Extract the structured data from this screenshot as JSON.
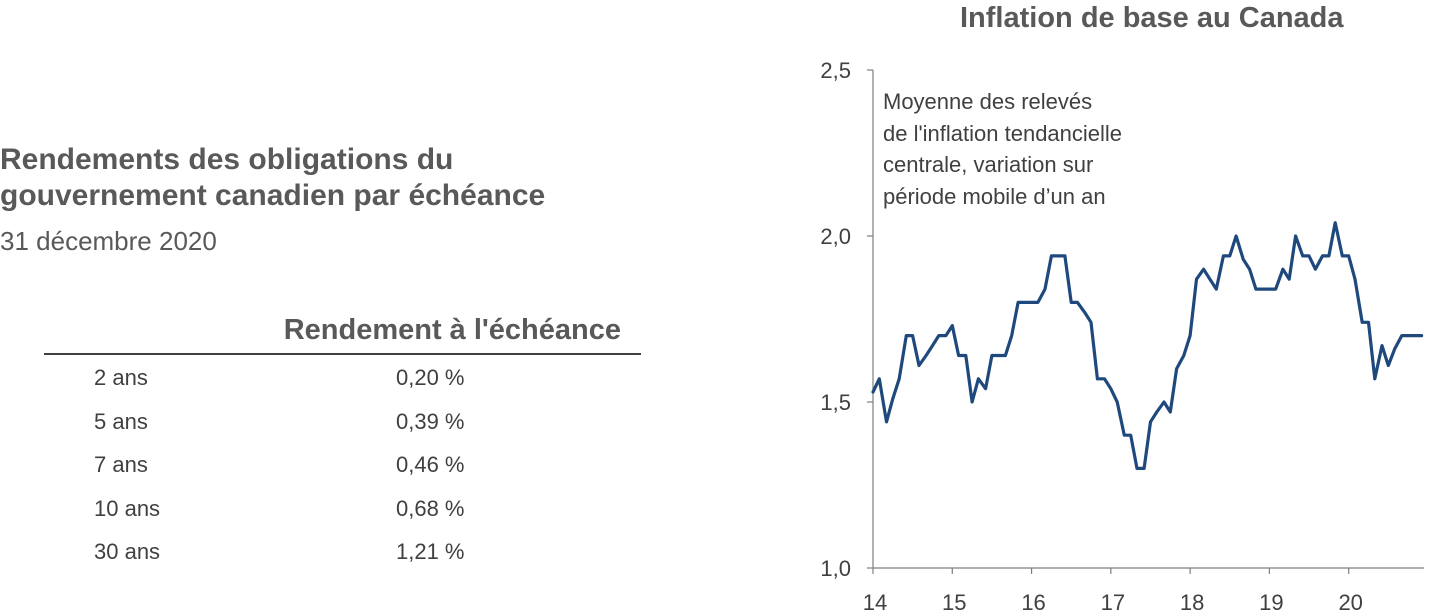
{
  "left_panel": {
    "title_line1": "Rendements des obligations du",
    "title_line2": "gouvernement canadien par échéance",
    "subtitle": "31 décembre 2020",
    "column_header": "Rendement à l'échéance",
    "rows": [
      {
        "term": "2 ans",
        "yield": "0,20 %"
      },
      {
        "term": "5 ans",
        "yield": "0,39 %"
      },
      {
        "term": "7 ans",
        "yield": "0,46 %"
      },
      {
        "term": "10 ans",
        "yield": "0,68 %"
      },
      {
        "term": "30 ans",
        "yield": "1,21 %"
      }
    ]
  },
  "chart_data": {
    "type": "line",
    "title": "Inflation de base au Canada",
    "annotation_lines": [
      "Moyenne des relevés",
      "de l'inflation tendancielle",
      "centrale, variation sur",
      "période mobile d’un an"
    ],
    "series_color": "#1f497d",
    "x_tick_labels": [
      "14",
      "15",
      "16",
      "17",
      "18",
      "19",
      "20"
    ],
    "y_tick_labels": [
      "1,0",
      "1,5",
      "2,0",
      "2,5"
    ],
    "xlim": [
      2014,
      2020.95
    ],
    "ylim": [
      1.0,
      2.5
    ],
    "grid": false,
    "series": [
      {
        "x": [
          2014.0,
          2014.08,
          2014.17,
          2014.25,
          2014.33,
          2014.42,
          2014.5,
          2014.58,
          2014.67,
          2014.75,
          2014.83,
          2014.92,
          2015.0,
          2015.08,
          2015.17,
          2015.25,
          2015.33,
          2015.42,
          2015.5,
          2015.58,
          2015.67,
          2015.75,
          2015.83,
          2015.92,
          2016.0,
          2016.08,
          2016.17,
          2016.25,
          2016.33,
          2016.42,
          2016.5,
          2016.58,
          2016.67,
          2016.75,
          2016.83,
          2016.92,
          2017.0,
          2017.08,
          2017.17,
          2017.25,
          2017.33,
          2017.42,
          2017.5,
          2017.58,
          2017.67,
          2017.75,
          2017.83,
          2017.92,
          2018.0,
          2018.08,
          2018.17,
          2018.25,
          2018.33,
          2018.42,
          2018.5,
          2018.58,
          2018.67,
          2018.75,
          2018.83,
          2018.92,
          2019.0,
          2019.08,
          2019.17,
          2019.25,
          2019.33,
          2019.42,
          2019.5,
          2019.58,
          2019.67,
          2019.75,
          2019.83,
          2019.92,
          2020.0,
          2020.08,
          2020.17,
          2020.25,
          2020.33,
          2020.42,
          2020.5,
          2020.58,
          2020.67,
          2020.75,
          2020.83,
          2020.92
        ],
        "values": [
          1.53,
          1.57,
          1.44,
          1.51,
          1.57,
          1.7,
          1.7,
          1.61,
          1.64,
          1.67,
          1.7,
          1.7,
          1.73,
          1.64,
          1.64,
          1.5,
          1.57,
          1.54,
          1.64,
          1.64,
          1.64,
          1.7,
          1.8,
          1.8,
          1.8,
          1.8,
          1.84,
          1.94,
          1.94,
          1.94,
          1.8,
          1.8,
          1.77,
          1.74,
          1.57,
          1.57,
          1.54,
          1.5,
          1.4,
          1.4,
          1.3,
          1.3,
          1.44,
          1.47,
          1.5,
          1.47,
          1.6,
          1.64,
          1.7,
          1.87,
          1.9,
          1.87,
          1.84,
          1.94,
          1.94,
          2.0,
          1.93,
          1.9,
          1.84,
          1.84,
          1.84,
          1.84,
          1.9,
          1.87,
          2.0,
          1.94,
          1.94,
          1.9,
          1.94,
          1.94,
          2.04,
          1.94,
          1.94,
          1.87,
          1.74,
          1.74,
          1.57,
          1.67,
          1.61,
          1.66,
          1.7,
          1.7,
          1.7,
          1.7
        ]
      }
    ]
  }
}
